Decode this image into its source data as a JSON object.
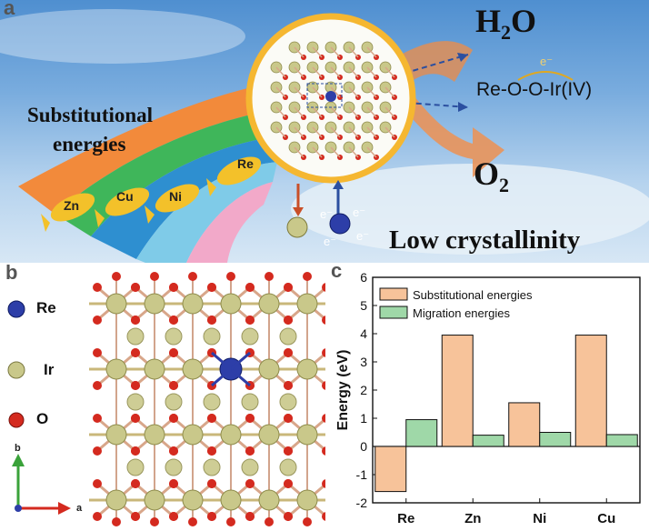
{
  "panel_a": {
    "label": "a",
    "title_line1": "Substitutional",
    "title_line2": "energies",
    "fish": [
      "Zn",
      "Cu",
      "Ni",
      "Re"
    ],
    "water_main": "H",
    "water_sub": "2",
    "water_end": "O",
    "electron_label": "e⁻",
    "bond_text": "Re-O-O-Ir(IV)",
    "oxygen_main": "O",
    "oxygen_sub": "2",
    "electrons": [
      "e⁻",
      "e⁻",
      "e⁻",
      "e⁻"
    ],
    "low_crystallinity": "Low crystallinity",
    "colors": {
      "rainbow": [
        "#f28a3b",
        "#3fb65a",
        "#2e8fd0",
        "#7fcbe8",
        "#f2a9c9"
      ],
      "sun_ring": "#f5b731",
      "arrow": "#e9935a"
    }
  },
  "panel_b": {
    "label": "b",
    "legend": [
      {
        "name": "Re",
        "color": "#2d3ea8"
      },
      {
        "name": "Ir",
        "color": "#c9c88a"
      },
      {
        "name": "O",
        "color": "#d42a1f"
      }
    ],
    "axes": {
      "b": "b",
      "a": "a"
    }
  },
  "chart_data": {
    "type": "bar",
    "panel_label": "c",
    "categories": [
      "Re",
      "Zn",
      "Ni",
      "Cu"
    ],
    "series": [
      {
        "name": "Substitutional energies",
        "values": [
          -1.6,
          3.95,
          1.55,
          3.95
        ],
        "color": "#f7c39a"
      },
      {
        "name": "Migration energies",
        "values": [
          0.95,
          0.4,
          0.5,
          0.42
        ],
        "color": "#9fd8a8"
      }
    ],
    "ylabel": "Energy (eV)",
    "xlabel": "",
    "ylim": [
      -2,
      6
    ],
    "yticks": [
      "-2",
      "-1",
      "0",
      "1",
      "2",
      "3",
      "4",
      "5",
      "6"
    ],
    "legend_position": "top-left"
  }
}
